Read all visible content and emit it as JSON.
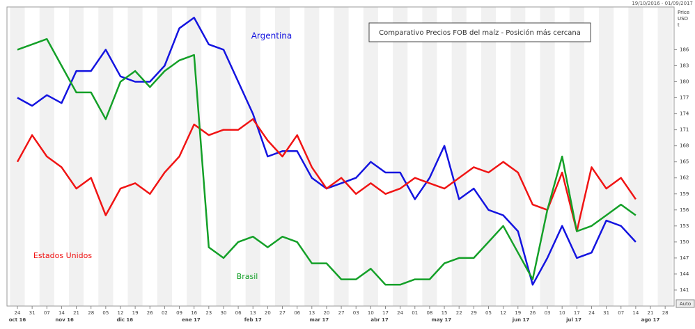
{
  "chart_data": {
    "type": "line",
    "title": "Comparativo Precios FOB del maíz - Posición más cercana",
    "date_range": "19/10/2016 - 01/09/2017",
    "y_axis_label": [
      "Price",
      "USD",
      "t"
    ],
    "auto_button": "Auto",
    "categories": [
      "24",
      "31",
      "07",
      "14",
      "21",
      "28",
      "05",
      "12",
      "19",
      "26",
      "02",
      "09",
      "16",
      "23",
      "30",
      "06",
      "13",
      "20",
      "27",
      "06",
      "13",
      "20",
      "27",
      "03",
      "10",
      "17",
      "24",
      "01",
      "08",
      "15",
      "22",
      "29",
      "05",
      "12",
      "19",
      "26",
      "03",
      "10",
      "17",
      "24",
      "31",
      "07",
      "14",
      "21",
      "28"
    ],
    "month_labels": [
      "oct 16",
      "nov 16",
      "dic 16",
      "ene 17",
      "feb 17",
      "mar 17",
      "abr 17",
      "may 17",
      "jun 17",
      "jul 17",
      "ago 17"
    ],
    "series": [
      {
        "name": "Argentina",
        "color": "#1414e0",
        "values": [
          177,
          175.5,
          177.5,
          176,
          182,
          182,
          186,
          181,
          180,
          180,
          183,
          190,
          192,
          187,
          186,
          180,
          174,
          166,
          167,
          167,
          162,
          160,
          161,
          162,
          165,
          163,
          163,
          158,
          162,
          168,
          158,
          160,
          156,
          155,
          152,
          142,
          147,
          153,
          147,
          148,
          154,
          153,
          150,
          null,
          null
        ]
      },
      {
        "name": "Estados Unidos",
        "color": "#f01414",
        "values": [
          165,
          170,
          166,
          164,
          160,
          162,
          155,
          160,
          161,
          159,
          163,
          166,
          172,
          170,
          171,
          171,
          173,
          169,
          166,
          170,
          164,
          160,
          162,
          159,
          161,
          159,
          160,
          162,
          161,
          160,
          162,
          164,
          163,
          165,
          163,
          157,
          156,
          163,
          152,
          164,
          160,
          162,
          158,
          null,
          null
        ]
      },
      {
        "name": "Brasil",
        "color": "#14a028",
        "values": [
          186,
          187,
          188,
          183,
          178,
          178,
          173,
          180,
          182,
          179,
          182,
          184,
          185,
          149,
          147,
          150,
          151,
          149,
          151,
          150,
          146,
          146,
          143,
          143,
          145,
          142,
          142,
          143,
          143,
          146,
          147,
          147,
          150,
          153,
          148,
          143,
          156,
          166,
          152,
          153,
          155,
          157,
          155,
          null,
          null
        ]
      }
    ],
    "ylim": [
      138,
      194
    ],
    "yticks": [
      141,
      144,
      147,
      150,
      153,
      156,
      159,
      162,
      165,
      168,
      171,
      174,
      177,
      180,
      183,
      186
    ]
  }
}
